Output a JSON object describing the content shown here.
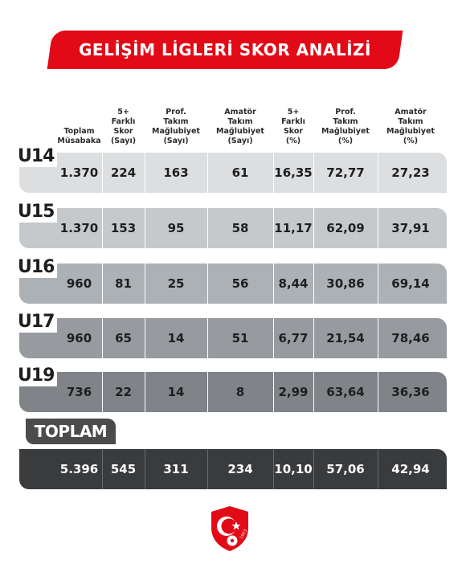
{
  "title": "GELİŞİM LİGLERİ SKOR ANALİZİ",
  "headers": [
    [
      "Toplam",
      "Müsabaka"
    ],
    [
      "5+",
      "Farklı",
      "Skor",
      "(Sayı)"
    ],
    [
      "Prof.",
      "Takım",
      "Mağlubiyet",
      "(Sayı)"
    ],
    [
      "Amatör",
      "Takım",
      "Mağlubiyet",
      "(Sayı)"
    ],
    [
      "5+",
      "Farklı",
      "Skor",
      "(%)"
    ],
    [
      "Prof.",
      "Takım",
      "Mağlubiyet",
      "(%)"
    ],
    [
      "Amatör",
      "Takım",
      "Mağlubiyet",
      "(%)"
    ]
  ],
  "rows": [
    {
      "label": "U14",
      "values": [
        "1.370",
        "224",
        "163",
        "61",
        "16,35",
        "72,77",
        "27,23"
      ],
      "color": "#dcdee0"
    },
    {
      "label": "U15",
      "values": [
        "1.370",
        "153",
        "95",
        "58",
        "11,17",
        "62,09",
        "37,91"
      ],
      "color": "#c6c9cc"
    },
    {
      "label": "U16",
      "values": [
        "960",
        "81",
        "25",
        "56",
        "8,44",
        "30,86",
        "69,14"
      ],
      "color": "#acb1b5"
    },
    {
      "label": "U17",
      "values": [
        "960",
        "65",
        "14",
        "51",
        "6,77",
        "21,54",
        "78,46"
      ],
      "color": "#979b9f"
    },
    {
      "label": "U19",
      "values": [
        "736",
        "22",
        "14",
        "8",
        "2,99",
        "63,64",
        "36,36"
      ],
      "color": "#808387"
    }
  ],
  "total": {
    "label": "TOPLAM",
    "values": [
      "5.396",
      "545",
      "311",
      "234",
      "10,10",
      "57,06",
      "42,94"
    ]
  },
  "logo": {
    "name": "tff-logo",
    "year": "1923",
    "colors": {
      "red": "#e30a17",
      "white": "#ffffff"
    }
  }
}
